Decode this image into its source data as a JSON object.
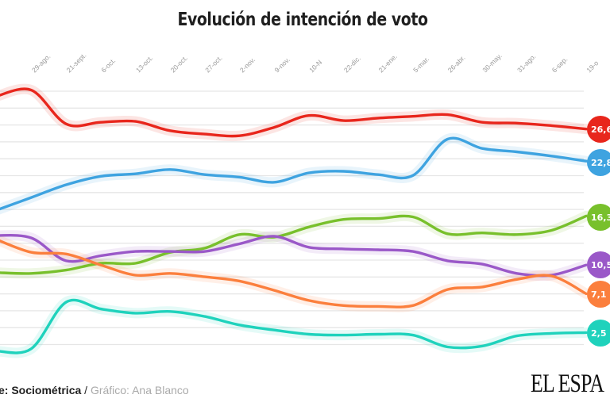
{
  "title": "Evolución de intención de voto",
  "footer": {
    "source_label": "e: Sociométrica",
    "separator": " / ",
    "credit": "Gráfico: Ana Blanco"
  },
  "logo": "EL ESPA",
  "chart_data": {
    "type": "line",
    "title": "Evolución de intención de voto",
    "xlabel": "",
    "ylabel": "",
    "ylim": [
      0,
      31
    ],
    "grid": true,
    "legend": "end-labels",
    "x": [
      "",
      "29-ago.",
      "21-sept.",
      "6-oct.",
      "13-oct.",
      "20-oct.",
      "27-oct.",
      "2-nov.",
      "9-nov.",
      "10-N",
      "22-dic.",
      "21-ene.",
      "5-mar.",
      "26-abr.",
      "30-may.",
      "31-ago.",
      "6-sep.",
      "19-o"
    ],
    "series": [
      {
        "name": "Rojo",
        "color": "#e8261c",
        "end_label": "26,6",
        "values": [
          30.5,
          31.2,
          27.2,
          27.4,
          27.5,
          26.4,
          26.0,
          25.8,
          26.8,
          28.2,
          27.6,
          27.9,
          28.1,
          28.3,
          27.4,
          27.3,
          27.0,
          26.6
        ]
      },
      {
        "name": "Azul",
        "color": "#3ea3e0",
        "end_label": "22,8",
        "values": [
          17.0,
          18.5,
          20.0,
          21.0,
          21.3,
          21.8,
          21.2,
          20.9,
          20.3,
          21.4,
          21.6,
          21.2,
          21.1,
          25.4,
          24.3,
          23.9,
          23.4,
          22.8
        ]
      },
      {
        "name": "Verde",
        "color": "#78c02c",
        "end_label": "16,3",
        "values": [
          9.6,
          9.5,
          9.9,
          10.7,
          10.7,
          12.0,
          12.5,
          14.1,
          13.8,
          15.0,
          15.9,
          16.0,
          16.2,
          14.2,
          14.3,
          14.1,
          14.6,
          16.3
        ]
      },
      {
        "name": "Morado",
        "color": "#9a58c8",
        "end_label": "10,5",
        "values": [
          14.0,
          13.7,
          11.0,
          11.6,
          12.1,
          12.1,
          12.1,
          13.0,
          13.9,
          12.6,
          12.4,
          12.3,
          12.1,
          11.0,
          10.6,
          9.5,
          9.3,
          10.5
        ]
      },
      {
        "name": "Naranja",
        "color": "#fb7f3d",
        "end_label": "7,1",
        "values": [
          13.5,
          12.0,
          11.8,
          10.5,
          9.3,
          9.5,
          9.1,
          8.6,
          7.5,
          6.3,
          5.7,
          5.6,
          5.7,
          7.6,
          7.9,
          8.8,
          9.2,
          7.1
        ]
      },
      {
        "name": "Turquesa",
        "color": "#1fd2bc",
        "end_label": "2,5",
        "values": [
          0.3,
          0.6,
          6.1,
          5.3,
          4.8,
          5.0,
          4.4,
          3.4,
          2.8,
          2.3,
          2.2,
          2.3,
          2.2,
          0.8,
          0.9,
          2.1,
          2.4,
          2.5
        ]
      }
    ]
  }
}
